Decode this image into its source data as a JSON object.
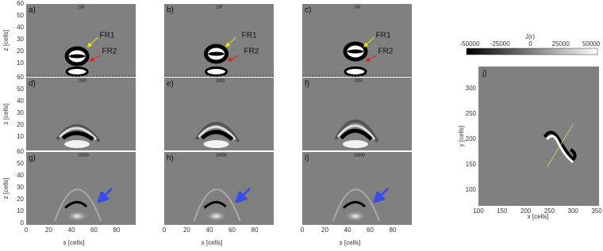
{
  "panels": [
    {
      "label": "a)",
      "title": "100",
      "annotations": [
        "FR1",
        "FR2"
      ]
    },
    {
      "label": "b)",
      "title": "100",
      "annotations": [
        "FR1",
        "FR2"
      ]
    },
    {
      "label": "c)",
      "title": "100",
      "annotations": [
        "FR1",
        "FR2"
      ]
    },
    {
      "label": "d)",
      "title": "1000"
    },
    {
      "label": "e)",
      "title": "1000"
    },
    {
      "label": "f)",
      "title": "1000"
    },
    {
      "label": "g)",
      "title": "10000"
    },
    {
      "label": "h)",
      "title": "10000"
    },
    {
      "label": "i)",
      "title": "10000"
    }
  ],
  "axes": {
    "z_label": "z [cells]",
    "s_label": "s [cells]",
    "z_ticks": [
      0,
      10,
      20,
      30,
      40,
      50,
      60
    ],
    "s_ticks": [
      0,
      20,
      40,
      60,
      80
    ]
  },
  "colorbar": {
    "label": "J(r)",
    "ticks": [
      -50000,
      -25000,
      0,
      25000,
      50000
    ]
  },
  "panel_j": {
    "label": "j)",
    "x_label": "x [cells]",
    "y_label": "y [cells]",
    "x_ticks": [
      100,
      150,
      200,
      250,
      300,
      350
    ],
    "y_ticks": [
      100,
      150,
      200,
      250,
      300
    ]
  }
}
